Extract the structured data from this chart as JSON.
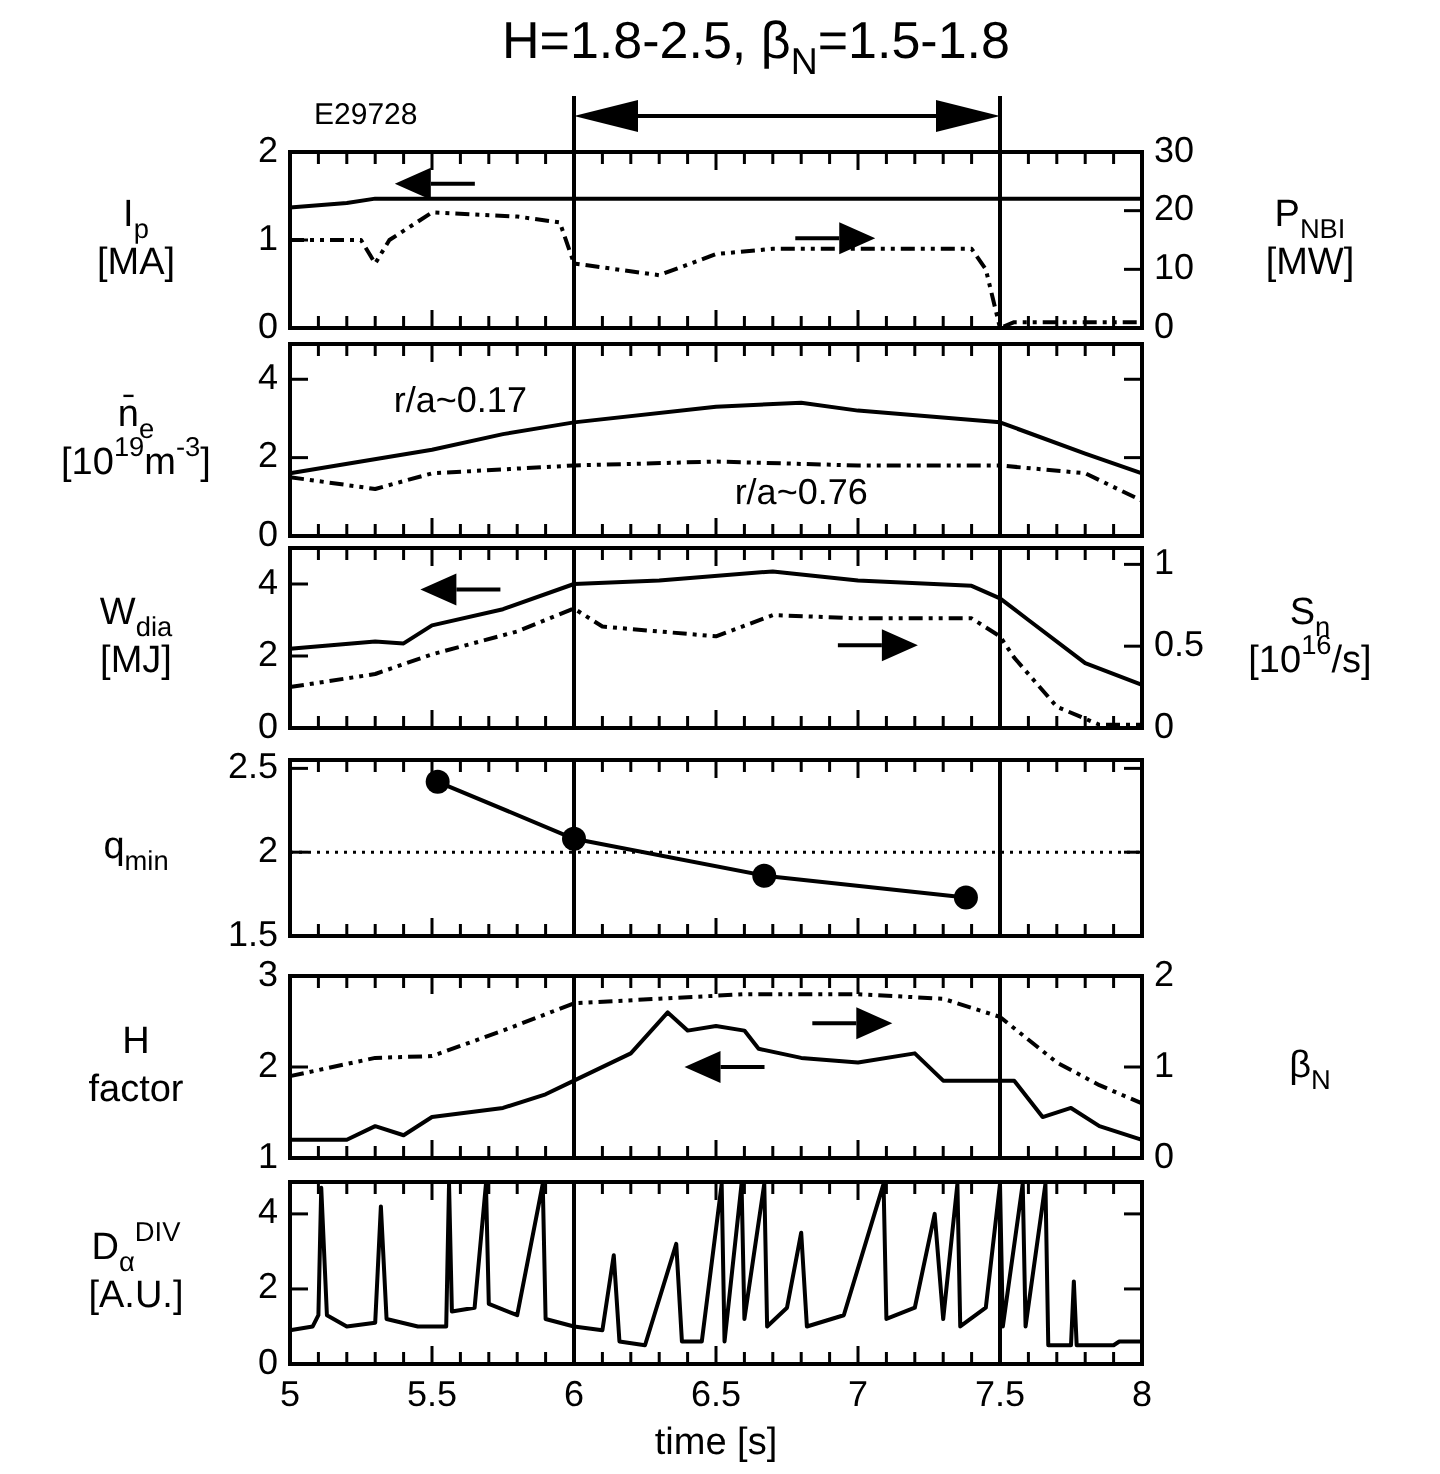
{
  "chart_data": [
    {
      "type": "line",
      "title": "H=1.8-2.5, β$_{N}$=1.5-1.8",
      "annotations": [
        "E29728"
      ],
      "ylabel": "I$_{p}$\n[MA]",
      "y2label": "P$_{NBI}$\n[MW]",
      "xlim": [
        5,
        8
      ],
      "xticks": [
        5,
        {
          "value": 5.1,
          "label": null
        },
        {
          "value": 5.2,
          "label": null
        },
        {
          "value": 5.3,
          "label": null
        },
        {
          "value": 5.4,
          "label": null
        },
        5.5,
        {
          "value": 5.6,
          "label": null
        },
        {
          "value": 5.7,
          "label": null
        },
        {
          "value": 5.8,
          "label": null
        },
        {
          "value": 5.9,
          "label": null
        },
        6,
        {
          "value": 6.1,
          "label": null
        },
        {
          "value": 6.2,
          "label": null
        },
        {
          "value": 6.3,
          "label": null
        },
        {
          "value": 6.4,
          "label": null
        },
        6.5,
        {
          "value": 6.6,
          "label": null
        },
        {
          "value": 6.7,
          "label": null
        },
        {
          "value": 6.8,
          "label": null
        },
        {
          "value": 6.9,
          "label": null
        },
        7,
        {
          "value": 7.1,
          "label": null
        },
        {
          "value": 7.2,
          "label": null
        },
        {
          "value": 7.3,
          "label": null
        },
        {
          "value": 7.4,
          "label": null
        },
        7.5,
        {
          "value": 7.6,
          "label": null
        },
        {
          "value": 7.7,
          "label": null
        },
        {
          "value": 7.8,
          "label": null
        },
        {
          "value": 7.9,
          "label": null
        },
        8
      ],
      "ylim": [
        0,
        2
      ],
      "yticks": [
        0,
        1,
        2
      ],
      "y2lim": [
        0,
        30
      ],
      "y2ticks": [
        0,
        10,
        20,
        30
      ],
      "tick_labels": "y",
      "ref_lines": [
        {
          "axis": "x",
          "value": 6
        },
        {
          "axis": "x",
          "value": 7.5
        }
      ],
      "series": [
        {
          "color": "#000000",
          "line_style": "solid",
          "x": [
            5,
            5.2,
            5.3,
            8
          ],
          "values": [
            1.37,
            1.42,
            1.47,
            1.47
          ]
        },
        {
          "color": "#000000",
          "line_style": "dashed",
          "axis": "y2",
          "x": [
            5,
            5.25,
            5.3,
            5.35,
            5.5,
            5.8,
            5.95,
            6,
            6.3,
            6.5,
            6.7,
            7,
            7.4,
            7.45,
            7.5,
            7.55,
            8
          ],
          "values": [
            15,
            15,
            11,
            15,
            19.7,
            19,
            18,
            11,
            9,
            12.6,
            13.5,
            13.5,
            13.5,
            10,
            0,
            1,
            1
          ]
        }
      ]
    },
    {
      "type": "line",
      "ylabel": "n̄$_{e}$\n[10$^{19}$m$^{-3}$]",
      "xlim": [
        5,
        8
      ],
      "xticks": [
        5,
        {
          "value": 5.1,
          "label": null
        },
        {
          "value": 5.2,
          "label": null
        },
        {
          "value": 5.3,
          "label": null
        },
        {
          "value": 5.4,
          "label": null
        },
        5.5,
        {
          "value": 5.6,
          "label": null
        },
        {
          "value": 5.7,
          "label": null
        },
        {
          "value": 5.8,
          "label": null
        },
        {
          "value": 5.9,
          "label": null
        },
        6,
        {
          "value": 6.1,
          "label": null
        },
        {
          "value": 6.2,
          "label": null
        },
        {
          "value": 6.3,
          "label": null
        },
        {
          "value": 6.4,
          "label": null
        },
        6.5,
        {
          "value": 6.6,
          "label": null
        },
        {
          "value": 6.7,
          "label": null
        },
        {
          "value": 6.8,
          "label": null
        },
        {
          "value": 6.9,
          "label": null
        },
        7,
        {
          "value": 7.1,
          "label": null
        },
        {
          "value": 7.2,
          "label": null
        },
        {
          "value": 7.3,
          "label": null
        },
        {
          "value": 7.4,
          "label": null
        },
        7.5,
        {
          "value": 7.6,
          "label": null
        },
        {
          "value": 7.7,
          "label": null
        },
        {
          "value": 7.8,
          "label": null
        },
        {
          "value": 7.9,
          "label": null
        },
        8
      ],
      "ylim": [
        0,
        4.9
      ],
      "yticks": [
        0,
        2,
        4
      ],
      "tick_labels": "y",
      "ref_lines": [
        {
          "axis": "x",
          "value": 6
        },
        {
          "axis": "x",
          "value": 7.5
        }
      ],
      "series": [
        {
          "name": "r/a~0.17",
          "color": "#000000",
          "line_style": "solid",
          "x": [
            5,
            5.25,
            5.5,
            5.75,
            6,
            6.5,
            6.8,
            7,
            7.5,
            7.8,
            8
          ],
          "values": [
            1.6,
            1.9,
            2.2,
            2.6,
            2.9,
            3.3,
            3.4,
            3.2,
            2.9,
            2.1,
            1.6
          ]
        },
        {
          "name": "r/a~0.76",
          "color": "#000000",
          "line_style": "dashed",
          "x": [
            5,
            5.3,
            5.5,
            6,
            6.5,
            7,
            7.5,
            7.8,
            8
          ],
          "values": [
            1.5,
            1.2,
            1.6,
            1.8,
            1.9,
            1.8,
            1.8,
            1.6,
            0.9
          ]
        }
      ]
    },
    {
      "type": "line",
      "ylabel": "W$_{dia}$\n[MJ]",
      "y2label": "S$_{n}$\n[10$^{16}$/s]",
      "xlim": [
        5,
        8
      ],
      "xticks": [
        5,
        {
          "value": 5.1,
          "label": null
        },
        {
          "value": 5.2,
          "label": null
        },
        {
          "value": 5.3,
          "label": null
        },
        {
          "value": 5.4,
          "label": null
        },
        5.5,
        {
          "value": 5.6,
          "label": null
        },
        {
          "value": 5.7,
          "label": null
        },
        {
          "value": 5.8,
          "label": null
        },
        {
          "value": 5.9,
          "label": null
        },
        6,
        {
          "value": 6.1,
          "label": null
        },
        {
          "value": 6.2,
          "label": null
        },
        {
          "value": 6.3,
          "label": null
        },
        {
          "value": 6.4,
          "label": null
        },
        6.5,
        {
          "value": 6.6,
          "label": null
        },
        {
          "value": 6.7,
          "label": null
        },
        {
          "value": 6.8,
          "label": null
        },
        {
          "value": 6.9,
          "label": null
        },
        7,
        {
          "value": 7.1,
          "label": null
        },
        {
          "value": 7.2,
          "label": null
        },
        {
          "value": 7.3,
          "label": null
        },
        {
          "value": 7.4,
          "label": null
        },
        7.5,
        {
          "value": 7.6,
          "label": null
        },
        {
          "value": 7.7,
          "label": null
        },
        {
          "value": 7.8,
          "label": null
        },
        {
          "value": 7.9,
          "label": null
        },
        8
      ],
      "ylim": [
        0,
        5
      ],
      "yticks": [
        0,
        2,
        4
      ],
      "y2lim": [
        0,
        1.1
      ],
      "y2ticks": [
        0,
        0.5,
        1
      ],
      "tick_labels": "y",
      "ref_lines": [
        {
          "axis": "x",
          "value": 6
        },
        {
          "axis": "x",
          "value": 7.5
        }
      ],
      "series": [
        {
          "color": "#000000",
          "line_style": "solid",
          "x": [
            5,
            5.3,
            5.4,
            5.5,
            5.75,
            6,
            6.3,
            6.7,
            7,
            7.4,
            7.5,
            7.6,
            7.8,
            8
          ],
          "values": [
            2.2,
            2.4,
            2.35,
            2.85,
            3.3,
            4,
            4.1,
            4.35,
            4.1,
            3.95,
            3.6,
            3,
            1.8,
            1.2
          ]
        },
        {
          "color": "#000000",
          "line_style": "dashed",
          "axis": "y2",
          "x": [
            5,
            5.3,
            5.5,
            5.8,
            6,
            6.1,
            6.5,
            6.7,
            7,
            7.4,
            7.5,
            7.55,
            7.7,
            7.85,
            8
          ],
          "values": [
            0.25,
            0.33,
            0.45,
            0.59,
            0.73,
            0.62,
            0.56,
            0.69,
            0.67,
            0.67,
            0.56,
            0.43,
            0.13,
            0.02,
            0.02
          ]
        }
      ]
    },
    {
      "type": "line",
      "ylabel": "q$_{min}$",
      "marker": "circle",
      "xlim": [
        5,
        8
      ],
      "xticks": [
        5,
        {
          "value": 5.1,
          "label": null
        },
        {
          "value": 5.2,
          "label": null
        },
        {
          "value": 5.3,
          "label": null
        },
        {
          "value": 5.4,
          "label": null
        },
        5.5,
        {
          "value": 5.6,
          "label": null
        },
        {
          "value": 5.7,
          "label": null
        },
        {
          "value": 5.8,
          "label": null
        },
        {
          "value": 5.9,
          "label": null
        },
        6,
        {
          "value": 6.1,
          "label": null
        },
        {
          "value": 6.2,
          "label": null
        },
        {
          "value": 6.3,
          "label": null
        },
        {
          "value": 6.4,
          "label": null
        },
        6.5,
        {
          "value": 6.6,
          "label": null
        },
        {
          "value": 6.7,
          "label": null
        },
        {
          "value": 6.8,
          "label": null
        },
        {
          "value": 6.9,
          "label": null
        },
        7,
        {
          "value": 7.1,
          "label": null
        },
        {
          "value": 7.2,
          "label": null
        },
        {
          "value": 7.3,
          "label": null
        },
        {
          "value": 7.4,
          "label": null
        },
        7.5,
        {
          "value": 7.6,
          "label": null
        },
        {
          "value": 7.7,
          "label": null
        },
        {
          "value": 7.8,
          "label": null
        },
        {
          "value": 7.9,
          "label": null
        },
        8
      ],
      "ylim": [
        1.5,
        2.55
      ],
      "yticks": [
        1.5,
        2,
        2.5
      ],
      "tick_labels": "y",
      "ref_lines": [
        {
          "axis": "x",
          "value": 6
        },
        {
          "axis": "x",
          "value": 7.5
        },
        {
          "axis": "y",
          "value": 2,
          "line_style": "dotted"
        }
      ],
      "series": [
        {
          "color": "#000000",
          "line_style": "solid",
          "x": [
            5.52,
            6,
            6.67,
            7.38
          ],
          "values": [
            2.42,
            2.08,
            1.86,
            1.73
          ]
        }
      ]
    },
    {
      "type": "line",
      "ylabel": "H\nfactor",
      "y2label": "β$_{N}$",
      "xlim": [
        5,
        8
      ],
      "xticks": [
        5,
        {
          "value": 5.1,
          "label": null
        },
        {
          "value": 5.2,
          "label": null
        },
        {
          "value": 5.3,
          "label": null
        },
        {
          "value": 5.4,
          "label": null
        },
        5.5,
        {
          "value": 5.6,
          "label": null
        },
        {
          "value": 5.7,
          "label": null
        },
        {
          "value": 5.8,
          "label": null
        },
        {
          "value": 5.9,
          "label": null
        },
        6,
        {
          "value": 6.1,
          "label": null
        },
        {
          "value": 6.2,
          "label": null
        },
        {
          "value": 6.3,
          "label": null
        },
        {
          "value": 6.4,
          "label": null
        },
        6.5,
        {
          "value": 6.6,
          "label": null
        },
        {
          "value": 6.7,
          "label": null
        },
        {
          "value": 6.8,
          "label": null
        },
        {
          "value": 6.9,
          "label": null
        },
        7,
        {
          "value": 7.1,
          "label": null
        },
        {
          "value": 7.2,
          "label": null
        },
        {
          "value": 7.3,
          "label": null
        },
        {
          "value": 7.4,
          "label": null
        },
        7.5,
        {
          "value": 7.6,
          "label": null
        },
        {
          "value": 7.7,
          "label": null
        },
        {
          "value": 7.8,
          "label": null
        },
        {
          "value": 7.9,
          "label": null
        },
        8
      ],
      "ylim": [
        1,
        3
      ],
      "yticks": [
        1,
        2,
        3
      ],
      "y2lim": [
        0,
        2
      ],
      "y2ticks": [
        0,
        1,
        2
      ],
      "tick_labels": "y",
      "ref_lines": [
        {
          "axis": "x",
          "value": 6
        },
        {
          "axis": "x",
          "value": 7.5
        }
      ],
      "series": [
        {
          "color": "#000000",
          "line_style": "solid",
          "x": [
            5,
            5.2,
            5.3,
            5.4,
            5.5,
            5.75,
            5.9,
            6,
            6.2,
            6.33,
            6.4,
            6.5,
            6.6,
            6.65,
            6.8,
            7,
            7.2,
            7.3,
            7.5,
            7.55,
            7.65,
            7.75,
            7.85,
            8
          ],
          "values": [
            1.2,
            1.2,
            1.35,
            1.25,
            1.45,
            1.55,
            1.7,
            1.85,
            2.15,
            2.6,
            2.4,
            2.45,
            2.4,
            2.2,
            2.1,
            2.05,
            2.15,
            1.85,
            1.85,
            1.85,
            1.45,
            1.55,
            1.35,
            1.2
          ]
        },
        {
          "color": "#000000",
          "line_style": "dashed",
          "axis": "y2",
          "x": [
            5,
            5.3,
            5.5,
            5.75,
            6,
            6.3,
            6.6,
            7,
            7.3,
            7.5,
            7.7,
            7.85,
            8
          ],
          "values": [
            0.9,
            1.1,
            1.12,
            1.4,
            1.7,
            1.75,
            1.8,
            1.8,
            1.75,
            1.55,
            1.05,
            0.8,
            0.6
          ]
        }
      ]
    },
    {
      "type": "line",
      "ylabel": "D$_{α}$$^{DIV}$\n[A.U.]",
      "xlabel": "time [s]",
      "xlim": [
        5,
        8
      ],
      "xticks": [
        5,
        {
          "value": 5.1,
          "label": null
        },
        {
          "value": 5.2,
          "label": null
        },
        {
          "value": 5.3,
          "label": null
        },
        {
          "value": 5.4,
          "label": null
        },
        5.5,
        {
          "value": 5.6,
          "label": null
        },
        {
          "value": 5.7,
          "label": null
        },
        {
          "value": 5.8,
          "label": null
        },
        {
          "value": 5.9,
          "label": null
        },
        6,
        {
          "value": 6.1,
          "label": null
        },
        {
          "value": 6.2,
          "label": null
        },
        {
          "value": 6.3,
          "label": null
        },
        {
          "value": 6.4,
          "label": null
        },
        6.5,
        {
          "value": 6.6,
          "label": null
        },
        {
          "value": 6.7,
          "label": null
        },
        {
          "value": 6.8,
          "label": null
        },
        {
          "value": 6.9,
          "label": null
        },
        7,
        {
          "value": 7.1,
          "label": null
        },
        {
          "value": 7.2,
          "label": null
        },
        {
          "value": 7.3,
          "label": null
        },
        {
          "value": 7.4,
          "label": null
        },
        7.5,
        {
          "value": 7.6,
          "label": null
        },
        {
          "value": 7.7,
          "label": null
        },
        {
          "value": 7.8,
          "label": null
        },
        {
          "value": 7.9,
          "label": null
        },
        8
      ],
      "ylim": [
        0,
        4.85
      ],
      "yticks": [
        0,
        2,
        4
      ],
      "ref_lines": [
        {
          "axis": "x",
          "value": 6
        },
        {
          "axis": "x",
          "value": 7.5
        }
      ],
      "series": [
        {
          "color": "#000000",
          "line_style": "solid",
          "x": [
            5,
            5.08,
            5.1,
            5.11,
            5.13,
            5.2,
            5.3,
            5.32,
            5.34,
            5.45,
            5.55,
            5.56,
            5.57,
            5.65,
            5.69,
            5.7,
            5.8,
            5.89,
            5.9,
            6,
            6.1,
            6.14,
            6.16,
            6.25,
            6.36,
            6.38,
            6.45,
            6.52,
            6.53,
            6.59,
            6.6,
            6.67,
            6.68,
            6.75,
            6.8,
            6.82,
            6.95,
            7.09,
            7.1,
            7.2,
            7.27,
            7.3,
            7.35,
            7.36,
            7.45,
            7.5,
            7.51,
            7.58,
            7.59,
            7.66,
            7.67,
            7.75,
            7.76,
            7.77,
            7.9,
            7.92,
            8
          ],
          "values": [
            0.9,
            1,
            1.3,
            4.7,
            1.3,
            1,
            1.1,
            4.2,
            1.2,
            1,
            1,
            4.8,
            1.4,
            1.5,
            4.8,
            1.6,
            1.3,
            4.8,
            1.2,
            1,
            0.9,
            2.9,
            0.6,
            0.5,
            3.2,
            0.6,
            0.6,
            4.8,
            0.6,
            4.8,
            1.2,
            4.8,
            1,
            1.5,
            3.5,
            1,
            1.3,
            4.8,
            1.2,
            1.5,
            4,
            1.2,
            4.8,
            1,
            1.5,
            4.8,
            1,
            4.8,
            1,
            4.8,
            0.5,
            0.5,
            2.2,
            0.5,
            0.5,
            0.6,
            0.6
          ]
        }
      ]
    }
  ]
}
